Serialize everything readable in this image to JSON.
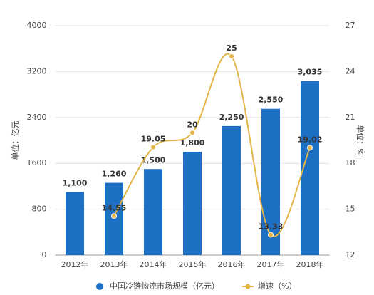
{
  "chart_data": {
    "type": "bar",
    "categories": [
      "2012年",
      "2013年",
      "2014年",
      "2015年",
      "2016年",
      "2017年",
      "2018年"
    ],
    "series": [
      {
        "name": "中国冷链物流市场规模（亿元）",
        "color": "#1d6fc4",
        "type": "bar",
        "values": [
          1100,
          1260,
          1500,
          1800,
          2250,
          2550,
          3035
        ],
        "value_labels": [
          "1,100",
          "1,260",
          "1,500",
          "1,800",
          "2,250",
          "2,550",
          "3,035"
        ]
      },
      {
        "name": "增速（%）",
        "color": "#e3b548",
        "type": "line",
        "axis": "y2",
        "values": [
          null,
          14.55,
          19.05,
          20,
          25,
          13.33,
          19.02
        ]
      }
    ],
    "ylabel": "单位：亿元",
    "y2label": "单位：%",
    "ylim": [
      0,
      4000
    ],
    "yticks": [
      0,
      800,
      1600,
      2400,
      3200,
      4000
    ],
    "y2lim": [
      12,
      27
    ],
    "y2ticks": [
      12,
      15,
      18,
      21,
      24,
      27
    ],
    "grid": true,
    "legend": "bottom"
  }
}
